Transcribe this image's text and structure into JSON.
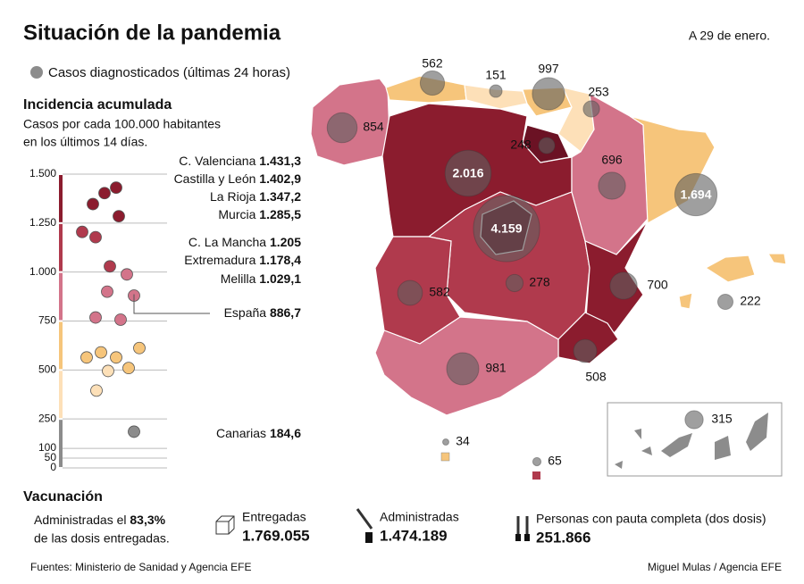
{
  "header": {
    "title": "Situación de la pandemia",
    "date": "A 29 de enero."
  },
  "legend": {
    "bubble_label": "Casos diagnosticados (últimas 24 horas)"
  },
  "incidence": {
    "title": "Incidencia acumulada",
    "subtitle": [
      "Casos por cada 100.000 habitantes",
      "en los últimos 14 días."
    ],
    "ylim": [
      0,
      1500
    ],
    "yticks": [
      {
        "value": 1500,
        "label": "1.500"
      },
      {
        "value": 1250,
        "label": "1.250"
      },
      {
        "value": 1000,
        "label": "1.000"
      },
      750,
      500,
      250,
      100,
      50,
      0
    ],
    "bands": [
      {
        "from": 1250,
        "to": 1500,
        "color": "#8b1c2e"
      },
      {
        "from": 1000,
        "to": 1250,
        "color": "#b03a4d"
      },
      {
        "from": 750,
        "to": 1000,
        "color": "#d3748a"
      },
      {
        "from": 500,
        "to": 750,
        "color": "#f6c57b"
      },
      {
        "from": 250,
        "to": 500,
        "color": "#fde0b8"
      },
      {
        "from": 0,
        "to": 250,
        "color": "#8c8c8c"
      }
    ],
    "labels": [
      {
        "name": "C. Valenciana",
        "value": 1431.3,
        "label": "1.431,3"
      },
      {
        "name": "Castilla y León",
        "value": 1402.9,
        "label": "1.402,9"
      },
      {
        "name": "La Rioja",
        "value": 1347.2,
        "label": "1.347,2"
      },
      {
        "name": "Murcia",
        "value": 1285.5,
        "label": "1.285,5"
      },
      {
        "name": "C. La Mancha",
        "value": 1205,
        "label": "1.205"
      },
      {
        "name": "Extremadura",
        "value": 1178.4,
        "label": "1.178,4"
      },
      {
        "name": "Melilla",
        "value": 1029.1,
        "label": "1.029,1"
      },
      {
        "name": "España",
        "value": 886.7,
        "label": "886,7"
      },
      {
        "name": "Canarias",
        "value": 184.6,
        "label": "184,6"
      }
    ],
    "dots": [
      1431,
      1403,
      1347,
      1285,
      1205,
      1178,
      1029,
      988,
      900,
      880,
      768,
      757,
      612,
      590,
      564,
      564,
      510,
      495,
      395,
      185
    ]
  },
  "map": {
    "bubbles": [
      562,
      151,
      997,
      253,
      854,
      248,
      {
        "value": 2016,
        "label": "2.016"
      },
      {
        "value": 4159,
        "label": "4.159"
      },
      696,
      {
        "value": 1694,
        "label": "1.694"
      },
      700,
      222,
      582,
      278,
      981,
      508,
      315,
      34,
      65
    ]
  },
  "vaccination": {
    "title": "Vacunación",
    "text_before": "Administradas el",
    "percent": "83,3%",
    "text_after": "de las dosis entregadas.",
    "delivered": {
      "label": "Entregadas",
      "value": "1.769.055"
    },
    "administered": {
      "label": "Administradas",
      "value": "1.474.189"
    },
    "complete": {
      "label": "Personas con pauta completa (dos dosis)",
      "value": "251.866"
    }
  },
  "footer": {
    "source": "Fuentes: Ministerio de Sanidad y Agencia EFE",
    "credit": "Miguel Mulas  / Agencia EFE"
  }
}
